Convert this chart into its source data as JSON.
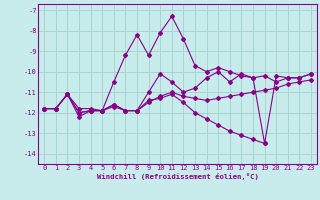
{
  "xlabel": "Windchill (Refroidissement éolien,°C)",
  "bg_color": "#c8ecec",
  "grid_color": "#a8d4d4",
  "line_color": "#880088",
  "xlim": [
    -0.5,
    23.5
  ],
  "ylim": [
    -14.5,
    -6.7
  ],
  "yticks": [
    -14,
    -13,
    -12,
    -11,
    -10,
    -9,
    -8,
    -7
  ],
  "xticks": [
    0,
    1,
    2,
    3,
    4,
    5,
    6,
    7,
    8,
    9,
    10,
    11,
    12,
    13,
    14,
    15,
    16,
    17,
    18,
    19,
    20,
    21,
    22,
    23
  ],
  "lines": [
    {
      "x": [
        0,
        1,
        2,
        3,
        4,
        5,
        6,
        7,
        8,
        9,
        10,
        11,
        12,
        13,
        14,
        15,
        16,
        17,
        18,
        19,
        20,
        21,
        22,
        23
      ],
      "y": [
        -11.8,
        -11.8,
        -11.1,
        -11.8,
        -11.8,
        -11.9,
        -10.5,
        -9.2,
        -8.2,
        -9.2,
        -8.1,
        -7.3,
        -8.4,
        -9.7,
        -10.0,
        -9.8,
        -10.0,
        -10.2,
        -10.3,
        -10.2,
        -10.5,
        -10.3,
        -10.3,
        -10.1
      ]
    },
    {
      "x": [
        0,
        1,
        2,
        3,
        4,
        5,
        6,
        7,
        8,
        9,
        10,
        11,
        12,
        13,
        14,
        15,
        16,
        17,
        18,
        19
      ],
      "y": [
        -11.8,
        -11.8,
        -11.1,
        -12.2,
        -11.9,
        -11.9,
        -11.7,
        -11.9,
        -11.9,
        -11.4,
        -11.3,
        -11.1,
        -11.5,
        -12.0,
        -12.3,
        -12.6,
        -12.9,
        -13.1,
        -13.3,
        -13.5
      ]
    },
    {
      "x": [
        0,
        1,
        2,
        3,
        4,
        5,
        6,
        7,
        8,
        9,
        10,
        11,
        12,
        13,
        14,
        15,
        16,
        17,
        18,
        19,
        20,
        21,
        22,
        23
      ],
      "y": [
        -11.8,
        -11.8,
        -11.1,
        -12.0,
        -11.9,
        -11.9,
        -11.6,
        -11.9,
        -11.9,
        -11.5,
        -11.2,
        -11.0,
        -11.2,
        -11.3,
        -11.4,
        -11.3,
        -11.2,
        -11.1,
        -11.0,
        -10.9,
        -10.8,
        -10.6,
        -10.5,
        -10.4
      ]
    },
    {
      "x": [
        0,
        1,
        2,
        3,
        4,
        5,
        6,
        7,
        8,
        9,
        10,
        11,
        12,
        13,
        14,
        15,
        16,
        17,
        18,
        19,
        20,
        21,
        22,
        23
      ],
      "y": [
        -11.8,
        -11.8,
        -11.1,
        -12.0,
        -11.9,
        -11.9,
        -11.6,
        -11.9,
        -11.9,
        -11.0,
        -10.1,
        -10.5,
        -11.0,
        -10.8,
        -10.3,
        -10.0,
        -10.5,
        -10.1,
        -10.3,
        -13.5,
        -10.2,
        -10.3,
        -10.3,
        -10.1
      ]
    }
  ]
}
